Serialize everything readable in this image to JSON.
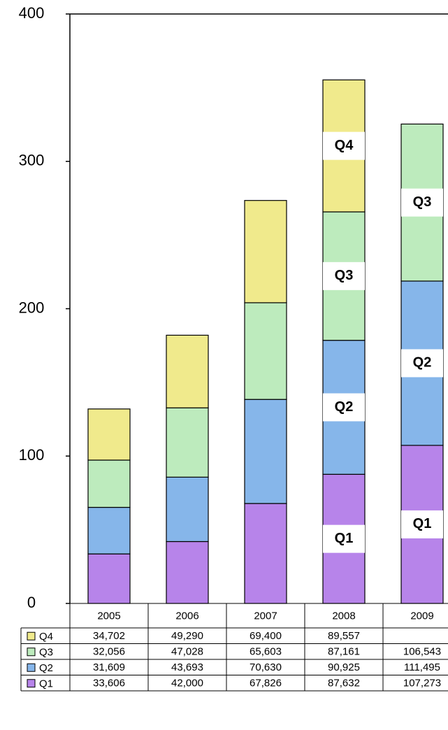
{
  "chart_data": {
    "type": "stacked-bar",
    "categories": [
      "2005",
      "2006",
      "2007",
      "2008",
      "2009"
    ],
    "series": [
      {
        "name": "Q1",
        "color": "#b784ea",
        "values": [
          33.606,
          42.0,
          67.826,
          87.632,
          107.273
        ],
        "value_labels": [
          "33,606",
          "42,000",
          "67,826",
          "87,632",
          "107,273"
        ]
      },
      {
        "name": "Q2",
        "color": "#86b6ea",
        "values": [
          31.609,
          43.693,
          70.63,
          90.925,
          111.495
        ],
        "value_labels": [
          "31,609",
          "43,693",
          "70,630",
          "90,925",
          "111,495"
        ]
      },
      {
        "name": "Q3",
        "color": "#bdebbd",
        "values": [
          32.056,
          47.028,
          65.603,
          87.161,
          106.543
        ],
        "value_labels": [
          "32,056",
          "47,028",
          "65,603",
          "87,161",
          "106,543"
        ]
      },
      {
        "name": "Q4",
        "color": "#f0ea8c",
        "values": [
          34.702,
          49.29,
          69.4,
          89.557,
          null
        ],
        "value_labels": [
          "34,702",
          "49,290",
          "69,400",
          "89,557",
          null
        ]
      }
    ],
    "ylim": [
      0,
      400
    ],
    "yticks": [
      0,
      100,
      200,
      300,
      400
    ],
    "annotations": [
      {
        "text": "Q1",
        "category": "2008"
      },
      {
        "text": "Q2",
        "category": "2008"
      },
      {
        "text": "Q3",
        "category": "2008"
      },
      {
        "text": "Q4",
        "category": "2008"
      },
      {
        "text": "Q1",
        "category": "2009"
      },
      {
        "text": "Q2",
        "category": "2009"
      },
      {
        "text": "Q3",
        "category": "2009"
      }
    ]
  }
}
